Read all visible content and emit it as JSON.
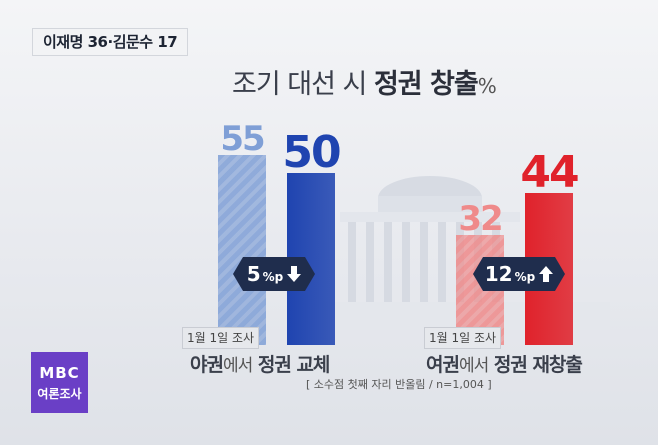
{
  "tag_text": "이재명 36·김문수 17",
  "title": {
    "part1": "조기 대선 시 ",
    "highlight": "정권 창출",
    "unit": "%"
  },
  "chart_data": {
    "type": "bar",
    "categories": [
      "야권에서 정권 교체",
      "여권에서 정권 재창출"
    ],
    "series": [
      {
        "name": "1월 1일 조사",
        "values": [
          55,
          32
        ]
      },
      {
        "values": [
          50,
          44
        ]
      }
    ],
    "ylim": [
      0,
      60
    ],
    "changes": [
      {
        "value": "5",
        "unit": "%p",
        "direction": "down"
      },
      {
        "value": "12",
        "unit": "%p",
        "direction": "up"
      }
    ],
    "colors": {
      "prev_blue": "#7f9fd6",
      "cur_blue": "#1f44b0",
      "prev_red": "#ef8a8a",
      "cur_red": "#e0222b"
    }
  },
  "category_labels": [
    {
      "main1": "야권",
      "mid": "에서",
      "main2": " 정권 교체"
    },
    {
      "main1": "여권",
      "mid": "에서",
      "main2": " 정권 재창출"
    }
  ],
  "date_label": "1월 1일 조사",
  "note": "[ 소수점 첫째 자리 반올림 / n=1,004 ]",
  "logo": {
    "line1": "MBC",
    "line2": "여론조사"
  }
}
